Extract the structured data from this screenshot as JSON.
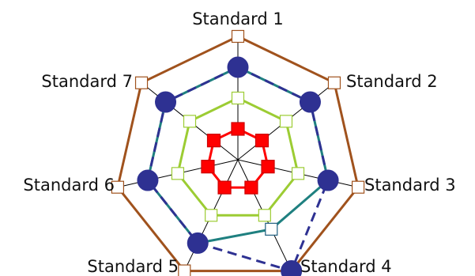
{
  "chart_data": {
    "type": "radar",
    "categories": [
      "Standard 1",
      "Standard 2",
      "Standard 3",
      "Standard 4",
      "Standard 5",
      "Standard 6",
      "Standard 7"
    ],
    "rmax": 4,
    "grid": true,
    "series": [
      {
        "key": "outer",
        "values": [
          4,
          4,
          4,
          4,
          4,
          4,
          4
        ],
        "color": "#a0521d",
        "stroke_style": "solid",
        "marker": "square",
        "marker_fill": "#ffffff",
        "marker_stroke": "#a0521d"
      },
      {
        "key": "teal",
        "values": [
          3,
          3,
          3,
          2.5,
          3,
          3,
          3
        ],
        "color": "#1f8080",
        "stroke_style": "solid",
        "marker": "square",
        "marker_fill": "#ffffff",
        "marker_stroke": "#1f6080"
      },
      {
        "key": "dashed",
        "values": [
          3,
          3,
          3,
          4,
          3,
          3,
          3
        ],
        "color": "#2e3192",
        "stroke_style": "dashed",
        "marker": "circle",
        "marker_fill": "#2e3192",
        "marker_stroke": "#2e3192"
      },
      {
        "key": "green",
        "values": [
          2,
          2,
          2,
          2,
          2,
          2,
          2
        ],
        "color": "#9ccc33",
        "stroke_style": "solid",
        "marker": "square",
        "marker_fill": "#ffffff",
        "marker_stroke": "#9ccc33"
      },
      {
        "key": "red",
        "values": [
          1,
          1,
          1,
          1,
          1,
          1,
          1
        ],
        "color": "#ff0000",
        "stroke_style": "solid",
        "marker": "square",
        "marker_fill": "#ff0000",
        "marker_stroke": "#cc0000"
      }
    ]
  }
}
